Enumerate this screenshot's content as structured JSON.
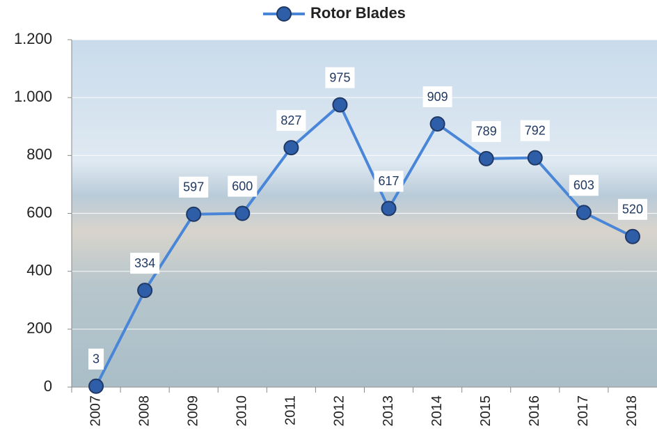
{
  "chart_data": {
    "type": "line",
    "categories": [
      "2007",
      "2008",
      "2009",
      "2010",
      "2011",
      "2012",
      "2013",
      "2014",
      "2015",
      "2016",
      "2017",
      "2018"
    ],
    "series": [
      {
        "name": "Rotor Blades",
        "color": "#4a86d8",
        "marker_color": "#2f5ea8",
        "values": [
          3,
          334,
          597,
          600,
          827,
          975,
          617,
          909,
          789,
          792,
          603,
          520
        ]
      }
    ],
    "ylim": [
      0,
      1200
    ],
    "yticks": [
      0,
      200,
      400,
      600,
      800,
      {
        "value": 1000,
        "label": "1.000"
      },
      {
        "value": 1200,
        "label": "1.200"
      }
    ],
    "grid": true,
    "legend": "top"
  }
}
